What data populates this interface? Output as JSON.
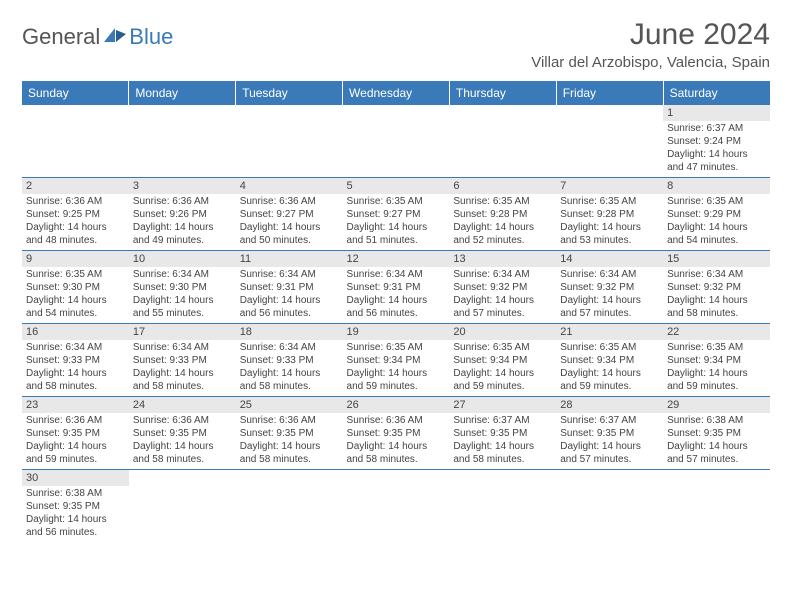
{
  "logo": {
    "general": "General",
    "blue": "Blue"
  },
  "title": "June 2024",
  "location": "Villar del Arzobispo, Valencia, Spain",
  "colors": {
    "header_bg": "#3a7ab8",
    "header_text": "#ffffff",
    "daynum_bg": "#e8e8e8",
    "border": "#3a7ab8",
    "text": "#444444",
    "title_color": "#555555"
  },
  "weekdays": [
    "Sunday",
    "Monday",
    "Tuesday",
    "Wednesday",
    "Thursday",
    "Friday",
    "Saturday"
  ],
  "days": [
    {
      "n": 1,
      "sr": "6:37 AM",
      "ss": "9:24 PM",
      "dl": "14 hours and 47 minutes."
    },
    {
      "n": 2,
      "sr": "6:36 AM",
      "ss": "9:25 PM",
      "dl": "14 hours and 48 minutes."
    },
    {
      "n": 3,
      "sr": "6:36 AM",
      "ss": "9:26 PM",
      "dl": "14 hours and 49 minutes."
    },
    {
      "n": 4,
      "sr": "6:36 AM",
      "ss": "9:27 PM",
      "dl": "14 hours and 50 minutes."
    },
    {
      "n": 5,
      "sr": "6:35 AM",
      "ss": "9:27 PM",
      "dl": "14 hours and 51 minutes."
    },
    {
      "n": 6,
      "sr": "6:35 AM",
      "ss": "9:28 PM",
      "dl": "14 hours and 52 minutes."
    },
    {
      "n": 7,
      "sr": "6:35 AM",
      "ss": "9:28 PM",
      "dl": "14 hours and 53 minutes."
    },
    {
      "n": 8,
      "sr": "6:35 AM",
      "ss": "9:29 PM",
      "dl": "14 hours and 54 minutes."
    },
    {
      "n": 9,
      "sr": "6:35 AM",
      "ss": "9:30 PM",
      "dl": "14 hours and 54 minutes."
    },
    {
      "n": 10,
      "sr": "6:34 AM",
      "ss": "9:30 PM",
      "dl": "14 hours and 55 minutes."
    },
    {
      "n": 11,
      "sr": "6:34 AM",
      "ss": "9:31 PM",
      "dl": "14 hours and 56 minutes."
    },
    {
      "n": 12,
      "sr": "6:34 AM",
      "ss": "9:31 PM",
      "dl": "14 hours and 56 minutes."
    },
    {
      "n": 13,
      "sr": "6:34 AM",
      "ss": "9:32 PM",
      "dl": "14 hours and 57 minutes."
    },
    {
      "n": 14,
      "sr": "6:34 AM",
      "ss": "9:32 PM",
      "dl": "14 hours and 57 minutes."
    },
    {
      "n": 15,
      "sr": "6:34 AM",
      "ss": "9:32 PM",
      "dl": "14 hours and 58 minutes."
    },
    {
      "n": 16,
      "sr": "6:34 AM",
      "ss": "9:33 PM",
      "dl": "14 hours and 58 minutes."
    },
    {
      "n": 17,
      "sr": "6:34 AM",
      "ss": "9:33 PM",
      "dl": "14 hours and 58 minutes."
    },
    {
      "n": 18,
      "sr": "6:34 AM",
      "ss": "9:33 PM",
      "dl": "14 hours and 58 minutes."
    },
    {
      "n": 19,
      "sr": "6:35 AM",
      "ss": "9:34 PM",
      "dl": "14 hours and 59 minutes."
    },
    {
      "n": 20,
      "sr": "6:35 AM",
      "ss": "9:34 PM",
      "dl": "14 hours and 59 minutes."
    },
    {
      "n": 21,
      "sr": "6:35 AM",
      "ss": "9:34 PM",
      "dl": "14 hours and 59 minutes."
    },
    {
      "n": 22,
      "sr": "6:35 AM",
      "ss": "9:34 PM",
      "dl": "14 hours and 59 minutes."
    },
    {
      "n": 23,
      "sr": "6:36 AM",
      "ss": "9:35 PM",
      "dl": "14 hours and 59 minutes."
    },
    {
      "n": 24,
      "sr": "6:36 AM",
      "ss": "9:35 PM",
      "dl": "14 hours and 58 minutes."
    },
    {
      "n": 25,
      "sr": "6:36 AM",
      "ss": "9:35 PM",
      "dl": "14 hours and 58 minutes."
    },
    {
      "n": 26,
      "sr": "6:36 AM",
      "ss": "9:35 PM",
      "dl": "14 hours and 58 minutes."
    },
    {
      "n": 27,
      "sr": "6:37 AM",
      "ss": "9:35 PM",
      "dl": "14 hours and 58 minutes."
    },
    {
      "n": 28,
      "sr": "6:37 AM",
      "ss": "9:35 PM",
      "dl": "14 hours and 57 minutes."
    },
    {
      "n": 29,
      "sr": "6:38 AM",
      "ss": "9:35 PM",
      "dl": "14 hours and 57 minutes."
    },
    {
      "n": 30,
      "sr": "6:38 AM",
      "ss": "9:35 PM",
      "dl": "14 hours and 56 minutes."
    }
  ],
  "labels": {
    "sunrise": "Sunrise:",
    "sunset": "Sunset:",
    "daylight": "Daylight:"
  },
  "first_weekday_index": 6
}
